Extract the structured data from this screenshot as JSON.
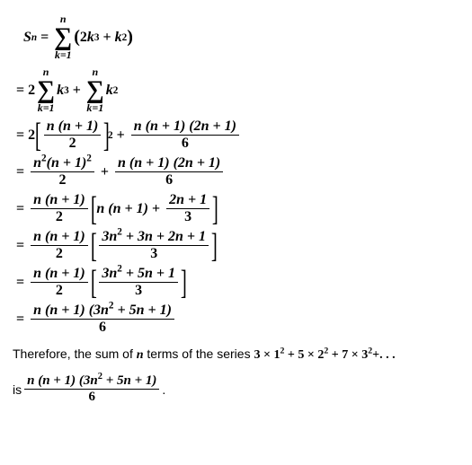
{
  "line1": {
    "lhs": "S",
    "lhs_sub": "n",
    "eq": "=",
    "sum_upper": "n",
    "sum_lower": "k=1",
    "expr_open": "(",
    "term1_coef": "2",
    "term1_var": "k",
    "term1_pow": "3",
    "plus": "+",
    "term2_var": "k",
    "term2_pow": "2",
    "expr_close": ")"
  },
  "line2": {
    "eq": "=",
    "coef1": "2",
    "sum1_upper": "n",
    "sum1_lower": "k=1",
    "t1_var": "k",
    "t1_pow": "3",
    "plus": "+",
    "sum2_upper": "n",
    "sum2_lower": "k=1",
    "t2_var": "k",
    "t2_pow": "2"
  },
  "line3": {
    "eq": "=",
    "coef": "2",
    "f1_num": "n (n + 1)",
    "f1_den": "2",
    "f1_pow": "2",
    "plus": "+",
    "f2_num": "n (n + 1) (2n + 1)",
    "f2_den": "6"
  },
  "line4": {
    "eq": "=",
    "f1_num_a": "n",
    "f1_num_pow_a": "2",
    "f1_num_b": "(n + 1)",
    "f1_num_pow_b": "2",
    "f1_den": "2",
    "plus": "+",
    "f2_num": "n (n + 1) (2n + 1)",
    "f2_den": "6"
  },
  "line5": {
    "eq": "=",
    "f1_num": "n (n + 1)",
    "f1_den": "2",
    "br_t1": "n (n + 1)",
    "plus": "+",
    "f2_num": "2n + 1",
    "f2_den": "3"
  },
  "line6": {
    "eq": "=",
    "f1_num": "n (n + 1)",
    "f1_den": "2",
    "f2_num": "3n",
    "f2_num_pow": "2",
    "f2_num_rest": " + 3n + 2n + 1",
    "f2_den": "3"
  },
  "line7": {
    "eq": "=",
    "f1_num": "n (n + 1)",
    "f1_den": "2",
    "f2_num": "3n",
    "f2_num_pow": "2",
    "f2_num_rest": " + 5n + 1",
    "f2_den": "3"
  },
  "line8": {
    "eq": "=",
    "num_a": "n (n + 1) (3n",
    "num_pow": "2",
    "num_b": " + 5n + 1)",
    "den": "6"
  },
  "text1": {
    "pre": "Therefore, the sum of ",
    "n": "n",
    "mid": " terms of the series ",
    "series": "3 × 1",
    "p1": "2",
    "s2": " + 5 × 2",
    "p2": "2",
    "s3": " + 7 × 3",
    "p3": "2",
    "s4": "+. . ."
  },
  "text2": {
    "pre": "is ",
    "num_a": "n (n + 1) (3n",
    "num_pow": "2",
    "num_b": " + 5n + 1)",
    "den": "6",
    "post": " ."
  },
  "colors": {
    "bg": "#ffffff",
    "text": "#000000"
  }
}
